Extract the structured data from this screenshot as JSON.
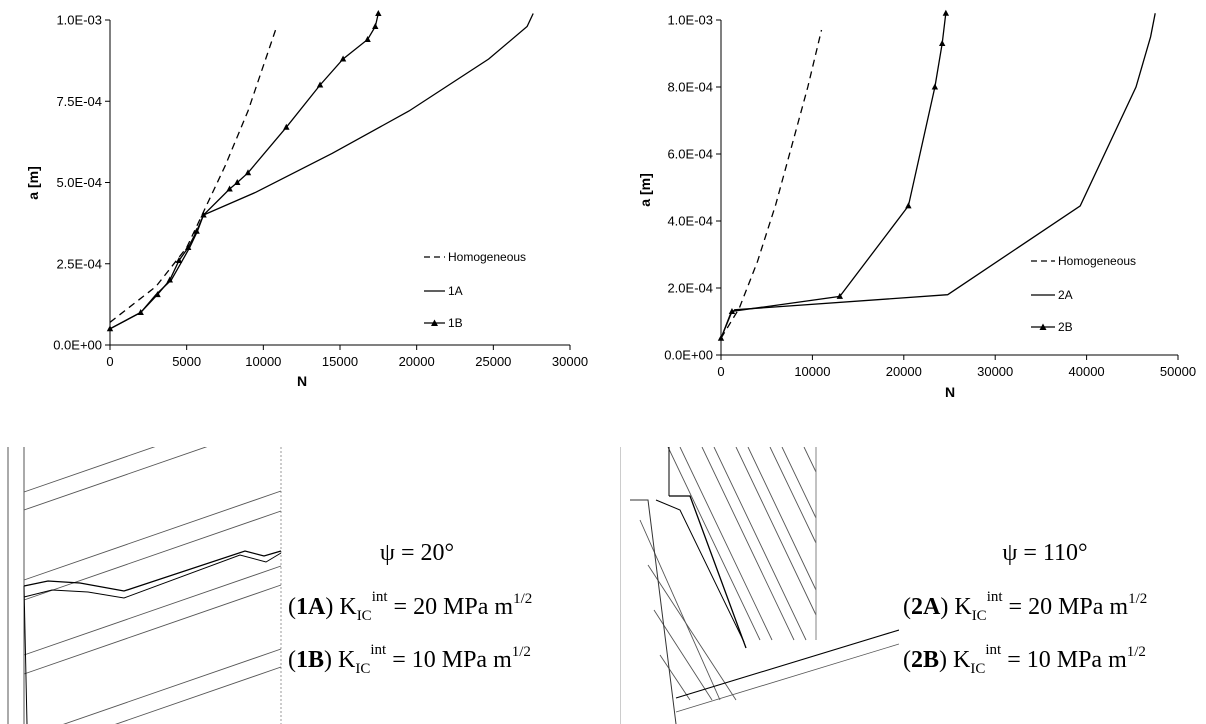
{
  "chart_data": [
    {
      "type": "line",
      "xlabel": "N",
      "ylabel": "a [m]",
      "xlim": [
        0,
        30000
      ],
      "ylim": [
        0,
        0.001
      ],
      "x_ticks": [
        "0",
        "5000",
        "10000",
        "15000",
        "20000",
        "25000",
        "30000"
      ],
      "y_ticks": [
        "0.0E+00",
        "2.5E-04",
        "5.0E-04",
        "7.5E-04",
        "1.0E-03"
      ],
      "legend_position": "bottom-right",
      "grid": false,
      "series": [
        {
          "name": "Homogeneous",
          "style": "dashed",
          "marker": "none",
          "x": [
            0,
            3000,
            5000,
            6000,
            7500,
            9000,
            10800
          ],
          "y": [
            7e-05,
            0.00018,
            0.0003,
            0.0004,
            0.00055,
            0.00072,
            0.00097
          ]
        },
        {
          "name": "1A",
          "style": "solid",
          "marker": "none",
          "x": [
            0,
            2000,
            3000,
            4000,
            4600,
            5200,
            5700,
            6100,
            9500,
            14500,
            19500,
            24700,
            27200,
            27600
          ],
          "y": [
            5e-05,
            0.0001,
            0.000155,
            0.0002,
            0.00025,
            0.0003,
            0.00035,
            0.0004,
            0.00047,
            0.00059,
            0.00072,
            0.00088,
            0.00098,
            0.00102
          ]
        },
        {
          "name": "1B",
          "style": "solid",
          "marker": "triangle",
          "x": [
            0,
            2000,
            3100,
            3900,
            4500,
            5100,
            5650,
            6100,
            7800,
            8300,
            9000,
            11500,
            13700,
            15200,
            16800,
            17300,
            17500
          ],
          "y": [
            5e-05,
            0.0001,
            0.000155,
            0.0002,
            0.00026,
            0.0003,
            0.00035,
            0.0004,
            0.00048,
            0.0005,
            0.00053,
            0.00067,
            0.0008,
            0.00088,
            0.00094,
            0.00098,
            0.00102
          ]
        }
      ]
    },
    {
      "type": "line",
      "xlabel": "N",
      "ylabel": "a [m]",
      "xlim": [
        0,
        50000
      ],
      "ylim": [
        0,
        0.001
      ],
      "x_ticks": [
        "0",
        "10000",
        "20000",
        "30000",
        "40000",
        "50000"
      ],
      "y_ticks": [
        "0.0E+00",
        "2.0E-04",
        "4.0E-04",
        "6.0E-04",
        "8.0E-04",
        "1.0E-03"
      ],
      "legend_position": "bottom-right",
      "grid": false,
      "series": [
        {
          "name": "Homogeneous",
          "style": "dashed",
          "marker": "none",
          "x": [
            0,
            2000,
            4000,
            6000,
            8000,
            9500,
            11000
          ],
          "y": [
            5e-05,
            0.00014,
            0.00028,
            0.00045,
            0.00065,
            0.0008,
            0.00097
          ]
        },
        {
          "name": "2A",
          "style": "solid",
          "marker": "none",
          "x": [
            0,
            1000,
            1500,
            24800,
            39300,
            45400,
            47000,
            47500
          ],
          "y": [
            5e-05,
            0.00012,
            0.000135,
            0.00018,
            0.000445,
            0.0008,
            0.00095,
            0.00102
          ]
        },
        {
          "name": "2B",
          "style": "solid",
          "marker": "triangle",
          "x": [
            0,
            1200,
            13000,
            20500,
            23400,
            24200,
            24600
          ],
          "y": [
            5e-05,
            0.00013,
            0.000175,
            0.000445,
            0.0008,
            0.00093,
            0.00102
          ]
        }
      ]
    }
  ],
  "panels": [
    {
      "psi": "ψ = 20°",
      "case_a": {
        "id": "1A",
        "k": "K",
        "sub": "IC",
        "sup": "int",
        "value": " = 20 MPa m",
        "exp": "1/2"
      },
      "case_b": {
        "id": "1B",
        "k": "K",
        "sub": "IC",
        "sup": "int",
        "value": " = 10 MPa m",
        "exp": "1/2"
      }
    },
    {
      "psi": "ψ = 110°",
      "case_a": {
        "id": "2A",
        "k": "K",
        "sub": "IC",
        "sup": "int",
        "value": " = 20 MPa m",
        "exp": "1/2"
      },
      "case_b": {
        "id": "2B",
        "k": "K",
        "sub": "IC",
        "sup": "int",
        "value": " = 10 MPa m",
        "exp": "1/2"
      }
    }
  ]
}
